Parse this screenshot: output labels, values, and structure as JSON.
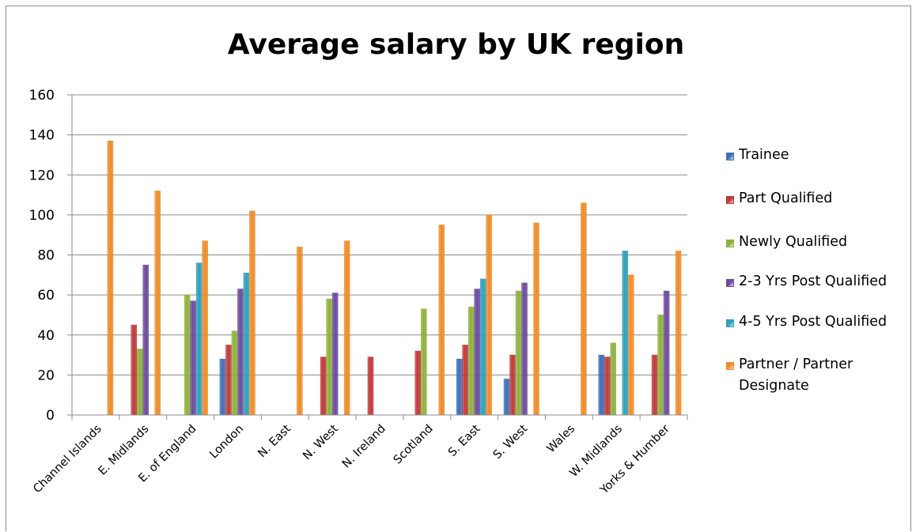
{
  "chart_data": {
    "type": "bar",
    "title": "Average salary by UK region",
    "xlabel": "",
    "ylabel": "",
    "ylim": [
      0,
      160
    ],
    "yticks": [
      0,
      20,
      40,
      60,
      80,
      100,
      120,
      140,
      160
    ],
    "grid": true,
    "legend_position": "right",
    "categories": [
      "Channel Islands",
      "E. Midlands",
      "E. of England",
      "London",
      "N. East",
      "N. West",
      "N. Ireland",
      "Scotland",
      "S. East",
      "S. West",
      "Wales",
      "W. Midlands",
      "Yorks & Humber"
    ],
    "series": [
      {
        "name": "Trainee",
        "color": "#3f6fb5",
        "values": [
          null,
          null,
          null,
          28,
          null,
          null,
          null,
          null,
          28,
          18,
          null,
          30,
          null
        ]
      },
      {
        "name": "Part Qualified",
        "color": "#c0393b",
        "values": [
          null,
          45,
          null,
          35,
          null,
          29,
          29,
          32,
          35,
          30,
          null,
          29,
          30
        ]
      },
      {
        "name": "Newly Qualified",
        "color": "#8db23b",
        "values": [
          null,
          33,
          60,
          42,
          null,
          58,
          null,
          53,
          54,
          62,
          null,
          36,
          50
        ]
      },
      {
        "name": "2-3 Yrs Post Qualified",
        "color": "#6d4b9c",
        "values": [
          null,
          75,
          57,
          63,
          null,
          61,
          null,
          null,
          63,
          66,
          null,
          null,
          62
        ]
      },
      {
        "name": "4-5 Yrs Post Qualified",
        "color": "#2fa0ba",
        "values": [
          null,
          null,
          76,
          71,
          null,
          null,
          null,
          null,
          68,
          null,
          null,
          82,
          null
        ]
      },
      {
        "name": "Partner / Partner Designate",
        "color": "#ee8c2a",
        "values": [
          137,
          112,
          87,
          102,
          84,
          87,
          null,
          95,
          100,
          96,
          106,
          70,
          82
        ]
      }
    ]
  }
}
